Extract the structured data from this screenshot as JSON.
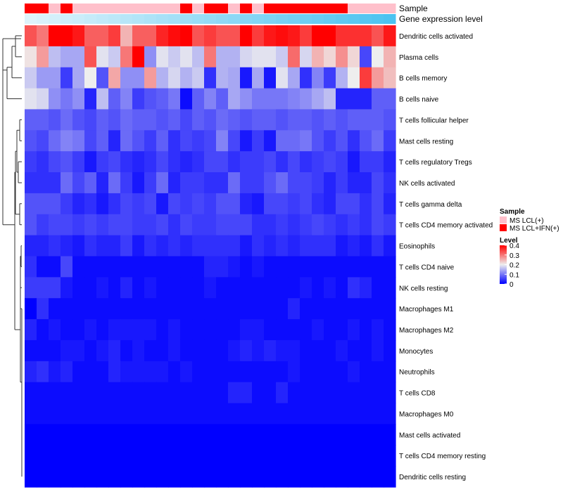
{
  "chart_data": {
    "type": "heatmap",
    "title": "",
    "annotation_labels": [
      "Sample",
      "Gene expression level"
    ],
    "rows": [
      "Dendritic cells activated",
      "Plasma cells",
      "B cells memory",
      "B cells naive",
      "T cells follicular helper",
      "Mast cells resting",
      "T cells regulatory  Tregs",
      "NK cells activated",
      "T cells gamma delta",
      "T cells CD4 memory activated",
      "Eosinophils",
      "T cells CD4 naive",
      "NK cells resting",
      "Macrophages M1",
      "Macrophages M2",
      "Monocytes",
      "Neutrophils",
      "T cells CD8",
      "Macrophages M0",
      "Mast cells activated",
      "T cells CD4 memory resting",
      "Dendritic cells resting"
    ],
    "n_columns": 31,
    "sample_groups": [
      1,
      1,
      0,
      1,
      0,
      0,
      0,
      0,
      0,
      0,
      0,
      0,
      0,
      1,
      0,
      1,
      1,
      0,
      1,
      0,
      1,
      1,
      1,
      1,
      1,
      1,
      1,
      0,
      0,
      0,
      0
    ],
    "values": [
      [
        0.33,
        0.3,
        0.4,
        0.4,
        0.38,
        0.32,
        0.32,
        0.35,
        0.25,
        0.32,
        0.32,
        0.37,
        0.39,
        0.4,
        0.33,
        0.35,
        0.33,
        0.33,
        0.4,
        0.35,
        0.38,
        0.39,
        0.38,
        0.35,
        0.4,
        0.4,
        0.36,
        0.36,
        0.36,
        0.33,
        0.38
      ],
      [
        0.21,
        0.27,
        0.16,
        0.14,
        0.14,
        0.33,
        0.19,
        0.17,
        0.3,
        0.4,
        0.12,
        0.19,
        0.17,
        0.19,
        0.16,
        0.3,
        0.15,
        0.15,
        0.18,
        0.19,
        0.19,
        0.17,
        0.31,
        0.18,
        0.25,
        0.22,
        0.28,
        0.22,
        0.06,
        0.2,
        0.25
      ],
      [
        0.17,
        0.13,
        0.13,
        0.05,
        0.14,
        0.2,
        0.07,
        0.26,
        0.12,
        0.12,
        0.27,
        0.15,
        0.18,
        0.15,
        0.17,
        0.04,
        0.15,
        0.14,
        0.02,
        0.14,
        0.02,
        0.19,
        0.14,
        0.04,
        0.11,
        0.05,
        0.15,
        0.2,
        0.35,
        0.27,
        0.24
      ],
      [
        0.19,
        0.18,
        0.12,
        0.1,
        0.12,
        0.03,
        0.16,
        0.08,
        0.11,
        0.05,
        0.07,
        0.08,
        0.1,
        0.01,
        0.08,
        0.11,
        0.08,
        0.14,
        0.12,
        0.1,
        0.1,
        0.1,
        0.11,
        0.12,
        0.14,
        0.16,
        0.03,
        0.03,
        0.03,
        0.08,
        0.08
      ],
      [
        0.08,
        0.08,
        0.07,
        0.09,
        0.07,
        0.06,
        0.08,
        0.07,
        0.09,
        0.08,
        0.08,
        0.07,
        0.08,
        0.06,
        0.08,
        0.07,
        0.09,
        0.08,
        0.07,
        0.08,
        0.08,
        0.07,
        0.08,
        0.08,
        0.07,
        0.08,
        0.07,
        0.08,
        0.08,
        0.08,
        0.07
      ],
      [
        0.07,
        0.06,
        0.09,
        0.11,
        0.1,
        0.06,
        0.08,
        0.03,
        0.09,
        0.07,
        0.05,
        0.08,
        0.04,
        0.06,
        0.05,
        0.06,
        0.11,
        0.06,
        0.02,
        0.05,
        0.02,
        0.09,
        0.09,
        0.1,
        0.07,
        0.05,
        0.07,
        0.04,
        0.07,
        0.09,
        0.05
      ],
      [
        0.05,
        0.04,
        0.06,
        0.07,
        0.05,
        0.02,
        0.05,
        0.06,
        0.04,
        0.03,
        0.04,
        0.06,
        0.04,
        0.03,
        0.04,
        0.06,
        0.06,
        0.04,
        0.05,
        0.05,
        0.06,
        0.04,
        0.06,
        0.04,
        0.05,
        0.06,
        0.05,
        0.02,
        0.05,
        0.05,
        0.03
      ],
      [
        0.04,
        0.04,
        0.04,
        0.09,
        0.06,
        0.08,
        0.03,
        0.09,
        0.05,
        0.02,
        0.05,
        0.09,
        0.03,
        0.05,
        0.05,
        0.04,
        0.04,
        0.09,
        0.05,
        0.05,
        0.07,
        0.09,
        0.06,
        0.06,
        0.05,
        0.03,
        0.05,
        0.03,
        0.03,
        0.06,
        0.04
      ],
      [
        0.07,
        0.07,
        0.07,
        0.05,
        0.03,
        0.04,
        0.02,
        0.04,
        0.06,
        0.05,
        0.06,
        0.02,
        0.06,
        0.05,
        0.06,
        0.05,
        0.07,
        0.07,
        0.03,
        0.02,
        0.06,
        0.06,
        0.05,
        0.06,
        0.04,
        0.03,
        0.06,
        0.06,
        0.04,
        0.06,
        0.03
      ],
      [
        0.07,
        0.05,
        0.06,
        0.06,
        0.05,
        0.06,
        0.05,
        0.06,
        0.06,
        0.05,
        0.05,
        0.06,
        0.04,
        0.06,
        0.05,
        0.05,
        0.06,
        0.06,
        0.06,
        0.04,
        0.04,
        0.05,
        0.04,
        0.05,
        0.06,
        0.05,
        0.04,
        0.05,
        0.04,
        0.06,
        0.05
      ],
      [
        0.03,
        0.03,
        0.04,
        0.03,
        0.02,
        0.04,
        0.03,
        0.03,
        0.05,
        0.02,
        0.04,
        0.03,
        0.04,
        0.03,
        0.04,
        0.04,
        0.04,
        0.04,
        0.02,
        0.04,
        0.03,
        0.04,
        0.03,
        0.04,
        0.04,
        0.04,
        0.02,
        0.03,
        0.02,
        0.04,
        0.02
      ],
      [
        0.04,
        0.01,
        0.01,
        0.06,
        0.01,
        0.01,
        0.01,
        0.01,
        0.01,
        0.01,
        0.01,
        0.01,
        0.01,
        0.01,
        0.01,
        0.03,
        0.03,
        0.02,
        0.01,
        0.02,
        0.01,
        0.01,
        0.01,
        0.01,
        0.01,
        0.01,
        0.01,
        0.01,
        0.01,
        0.01,
        0.01
      ],
      [
        0.05,
        0.05,
        0.05,
        0.02,
        0.01,
        0.01,
        0.02,
        0.01,
        0.03,
        0.01,
        0.02,
        0.01,
        0.01,
        0.01,
        0.01,
        0.02,
        0.01,
        0.01,
        0.01,
        0.01,
        0.01,
        0.01,
        0.01,
        0.02,
        0.01,
        0.02,
        0.01,
        0.04,
        0.03,
        0.01,
        0.01
      ],
      [
        0.0,
        0.04,
        0.01,
        0.01,
        0.01,
        0.01,
        0.01,
        0.01,
        0.01,
        0.01,
        0.01,
        0.01,
        0.01,
        0.01,
        0.01,
        0.01,
        0.01,
        0.01,
        0.01,
        0.01,
        0.01,
        0.01,
        0.03,
        0.01,
        0.01,
        0.01,
        0.01,
        0.01,
        0.01,
        0.01,
        0.01
      ],
      [
        0.03,
        0.01,
        0.02,
        0.01,
        0.01,
        0.02,
        0.01,
        0.02,
        0.02,
        0.02,
        0.02,
        0.01,
        0.02,
        0.01,
        0.01,
        0.01,
        0.01,
        0.01,
        0.02,
        0.02,
        0.01,
        0.01,
        0.01,
        0.01,
        0.02,
        0.01,
        0.01,
        0.02,
        0.01,
        0.02,
        0.01
      ],
      [
        0.01,
        0.01,
        0.01,
        0.02,
        0.02,
        0.01,
        0.02,
        0.03,
        0.01,
        0.02,
        0.01,
        0.01,
        0.02,
        0.01,
        0.01,
        0.01,
        0.01,
        0.02,
        0.03,
        0.02,
        0.03,
        0.02,
        0.02,
        0.01,
        0.01,
        0.01,
        0.02,
        0.01,
        0.01,
        0.02,
        0.01
      ],
      [
        0.03,
        0.04,
        0.02,
        0.03,
        0.01,
        0.01,
        0.01,
        0.03,
        0.02,
        0.02,
        0.02,
        0.02,
        0.01,
        0.02,
        0.01,
        0.01,
        0.01,
        0.01,
        0.01,
        0.01,
        0.01,
        0.01,
        0.02,
        0.01,
        0.01,
        0.01,
        0.01,
        0.02,
        0.01,
        0.01,
        0.01
      ],
      [
        0.01,
        0.01,
        0.01,
        0.01,
        0.01,
        0.01,
        0.01,
        0.01,
        0.01,
        0.01,
        0.01,
        0.01,
        0.01,
        0.01,
        0.01,
        0.01,
        0.01,
        0.03,
        0.03,
        0.01,
        0.01,
        0.03,
        0.01,
        0.01,
        0.01,
        0.01,
        0.01,
        0.01,
        0.01,
        0.01,
        0.01
      ],
      [
        0.01,
        0.01,
        0.01,
        0.01,
        0.01,
        0.01,
        0.01,
        0.01,
        0.01,
        0.01,
        0.01,
        0.01,
        0.01,
        0.01,
        0.01,
        0.01,
        0.01,
        0.01,
        0.01,
        0.01,
        0.01,
        0.01,
        0.01,
        0.01,
        0.01,
        0.01,
        0.01,
        0.01,
        0.01,
        0.01,
        0.01
      ],
      [
        0.0,
        0.0,
        0.0,
        0.0,
        0.0,
        0.0,
        0.0,
        0.0,
        0.0,
        0.0,
        0.0,
        0.0,
        0.0,
        0.0,
        0.0,
        0.0,
        0.0,
        0.0,
        0.0,
        0.0,
        0.0,
        0.0,
        0.0,
        0.0,
        0.0,
        0.0,
        0.0,
        0.0,
        0.0,
        0.0,
        0.0
      ],
      [
        0.0,
        0.0,
        0.0,
        0.0,
        0.0,
        0.0,
        0.0,
        0.0,
        0.0,
        0.0,
        0.0,
        0.0,
        0.0,
        0.0,
        0.0,
        0.0,
        0.0,
        0.0,
        0.0,
        0.0,
        0.0,
        0.0,
        0.0,
        0.0,
        0.0,
        0.0,
        0.0,
        0.0,
        0.0,
        0.0,
        0.0
      ],
      [
        0.0,
        0.0,
        0.0,
        0.0,
        0.0,
        0.0,
        0.0,
        0.0,
        0.0,
        0.0,
        0.0,
        0.0,
        0.0,
        0.0,
        0.0,
        0.0,
        0.0,
        0.0,
        0.0,
        0.0,
        0.0,
        0.0,
        0.0,
        0.0,
        0.0,
        0.0,
        0.0,
        0.0,
        0.0,
        0.0,
        0.0
      ]
    ],
    "value_range": [
      0,
      0.4
    ],
    "colors": {
      "low": "#0000ff",
      "mid": "#eeeeee",
      "high": "#ff0000",
      "group_light": "#ffc0cb",
      "group_dark": "#ff0000",
      "expr_light": "#def3fb",
      "expr_dark": "#4cc3f0",
      "tree": "#333333"
    },
    "legend": {
      "sample_title": "Sample",
      "sample_entries": [
        "MS LCL(+)",
        "MS LCL+IFN(+)"
      ],
      "level_title": "Level",
      "level_ticks": [
        "0.4",
        "0.3",
        "0.2",
        "0.1",
        "0"
      ],
      "level_tick_values": [
        0.4,
        0.3,
        0.2,
        0.1,
        0
      ]
    }
  }
}
